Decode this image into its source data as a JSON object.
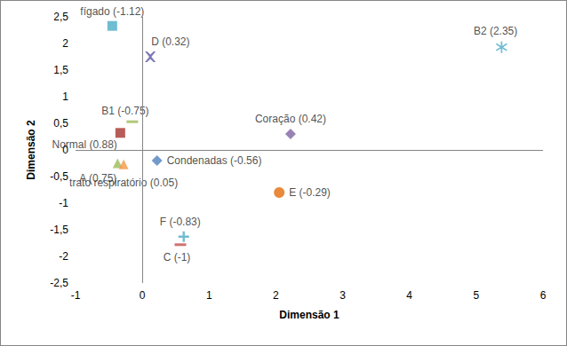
{
  "chart_data": {
    "type": "scatter",
    "x_label": "Dimensão 1",
    "y_label": "Dimensão 2",
    "xlim": [
      -1,
      6
    ],
    "xticks": [
      -1,
      0,
      1,
      2,
      3,
      4,
      5,
      6
    ],
    "ylim": [
      -2.5,
      2.5
    ],
    "yticks": [
      {
        "value": -2.5,
        "label": "-2,5"
      },
      -2,
      {
        "value": -1.5,
        "label": "-1,5"
      },
      -1,
      {
        "value": -0.5,
        "label": "-0,5"
      },
      0,
      {
        "value": 0.5,
        "label": "0,5"
      },
      1,
      {
        "value": 1.5,
        "label": "1,5"
      },
      2,
      {
        "value": 2.5,
        "label": "2,5"
      }
    ],
    "grid": false,
    "series": [
      {
        "name": "fígado (-1.12)",
        "color": "#4bacc6",
        "marker": "square",
        "x": [
          -0.45
        ],
        "values": [
          2.33
        ]
      },
      {
        "name": "D (0.32)",
        "color": "#5b58a0",
        "marker": "x",
        "x": [
          0.12
        ],
        "values": [
          1.75
        ]
      },
      {
        "name": "B2 (2.35)",
        "color": "#4bacc6",
        "marker": "star",
        "x": [
          5.38
        ],
        "values": [
          1.93
        ]
      },
      {
        "name": "B1 (-0.75)",
        "color": "#9bbb59",
        "marker": "dash",
        "x": [
          -0.15
        ],
        "values": [
          0.53
        ]
      },
      {
        "name": "Normal (0.88)",
        "color": "#a5342f",
        "marker": "square",
        "x": [
          -0.33
        ],
        "values": [
          0.32
        ]
      },
      {
        "name": "Coração (0.42)",
        "color": "#8064a2",
        "marker": "diamond",
        "x": [
          2.22
        ],
        "values": [
          0.3
        ]
      },
      {
        "name": "A (0.75)",
        "color": "#9bbb59",
        "marker": "triangle",
        "x": [
          -0.37
        ],
        "values": [
          -0.25
        ]
      },
      {
        "name": "trato respiratório (0.05)",
        "color": "#f79646",
        "marker": "triangle",
        "x": [
          -0.28
        ],
        "values": [
          -0.27
        ]
      },
      {
        "name": "Condenadas (-0.56)",
        "color": "#4f81bd",
        "marker": "diamond",
        "x": [
          0.22
        ],
        "values": [
          -0.2
        ]
      },
      {
        "name": "E (-0.29)",
        "color": "#e46c0a",
        "marker": "circle",
        "x": [
          2.05
        ],
        "values": [
          -0.8
        ]
      },
      {
        "name": "F (-0.83)",
        "color": "#4bacc6",
        "marker": "plus",
        "x": [
          0.62
        ],
        "values": [
          -1.63
        ]
      },
      {
        "name": "C (-1)",
        "color": "#c0504d",
        "marker": "dash",
        "x": [
          0.57
        ],
        "values": [
          -1.78
        ]
      }
    ]
  }
}
